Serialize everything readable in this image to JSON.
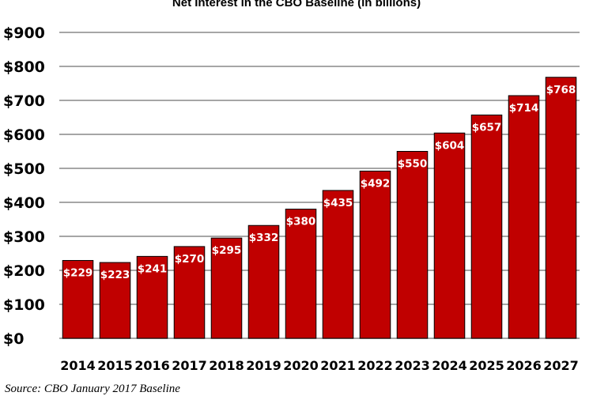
{
  "chart_data": {
    "type": "bar",
    "title": "Net Interest in the CBO Baseline (in billions)",
    "source": "Source: CBO January 2017 Baseline",
    "categories": [
      "2014",
      "2015",
      "2016",
      "2017",
      "2018",
      "2019",
      "2020",
      "2021",
      "2022",
      "2023",
      "2024",
      "2025",
      "2026",
      "2027"
    ],
    "values": [
      229,
      223,
      241,
      270,
      295,
      332,
      380,
      435,
      492,
      550,
      604,
      657,
      714,
      768
    ],
    "data_labels": [
      "$229",
      "$223",
      "$241",
      "$270",
      "$295",
      "$332",
      "$380",
      "$435",
      "$492",
      "$550",
      "$604",
      "$657",
      "$714",
      "$768"
    ],
    "yticks": [
      0,
      100,
      200,
      300,
      400,
      500,
      600,
      700,
      800,
      900
    ],
    "ytick_labels": [
      "$0",
      "$100",
      "$200",
      "$300",
      "$400",
      "$500",
      "$600",
      "$700",
      "$800",
      "$900"
    ],
    "ylim": [
      0,
      900
    ],
    "grid": true,
    "legend": "none",
    "bar_color": "#c00000",
    "bar_edge_color": "#000000",
    "grid_color": "#a6a6a6"
  }
}
